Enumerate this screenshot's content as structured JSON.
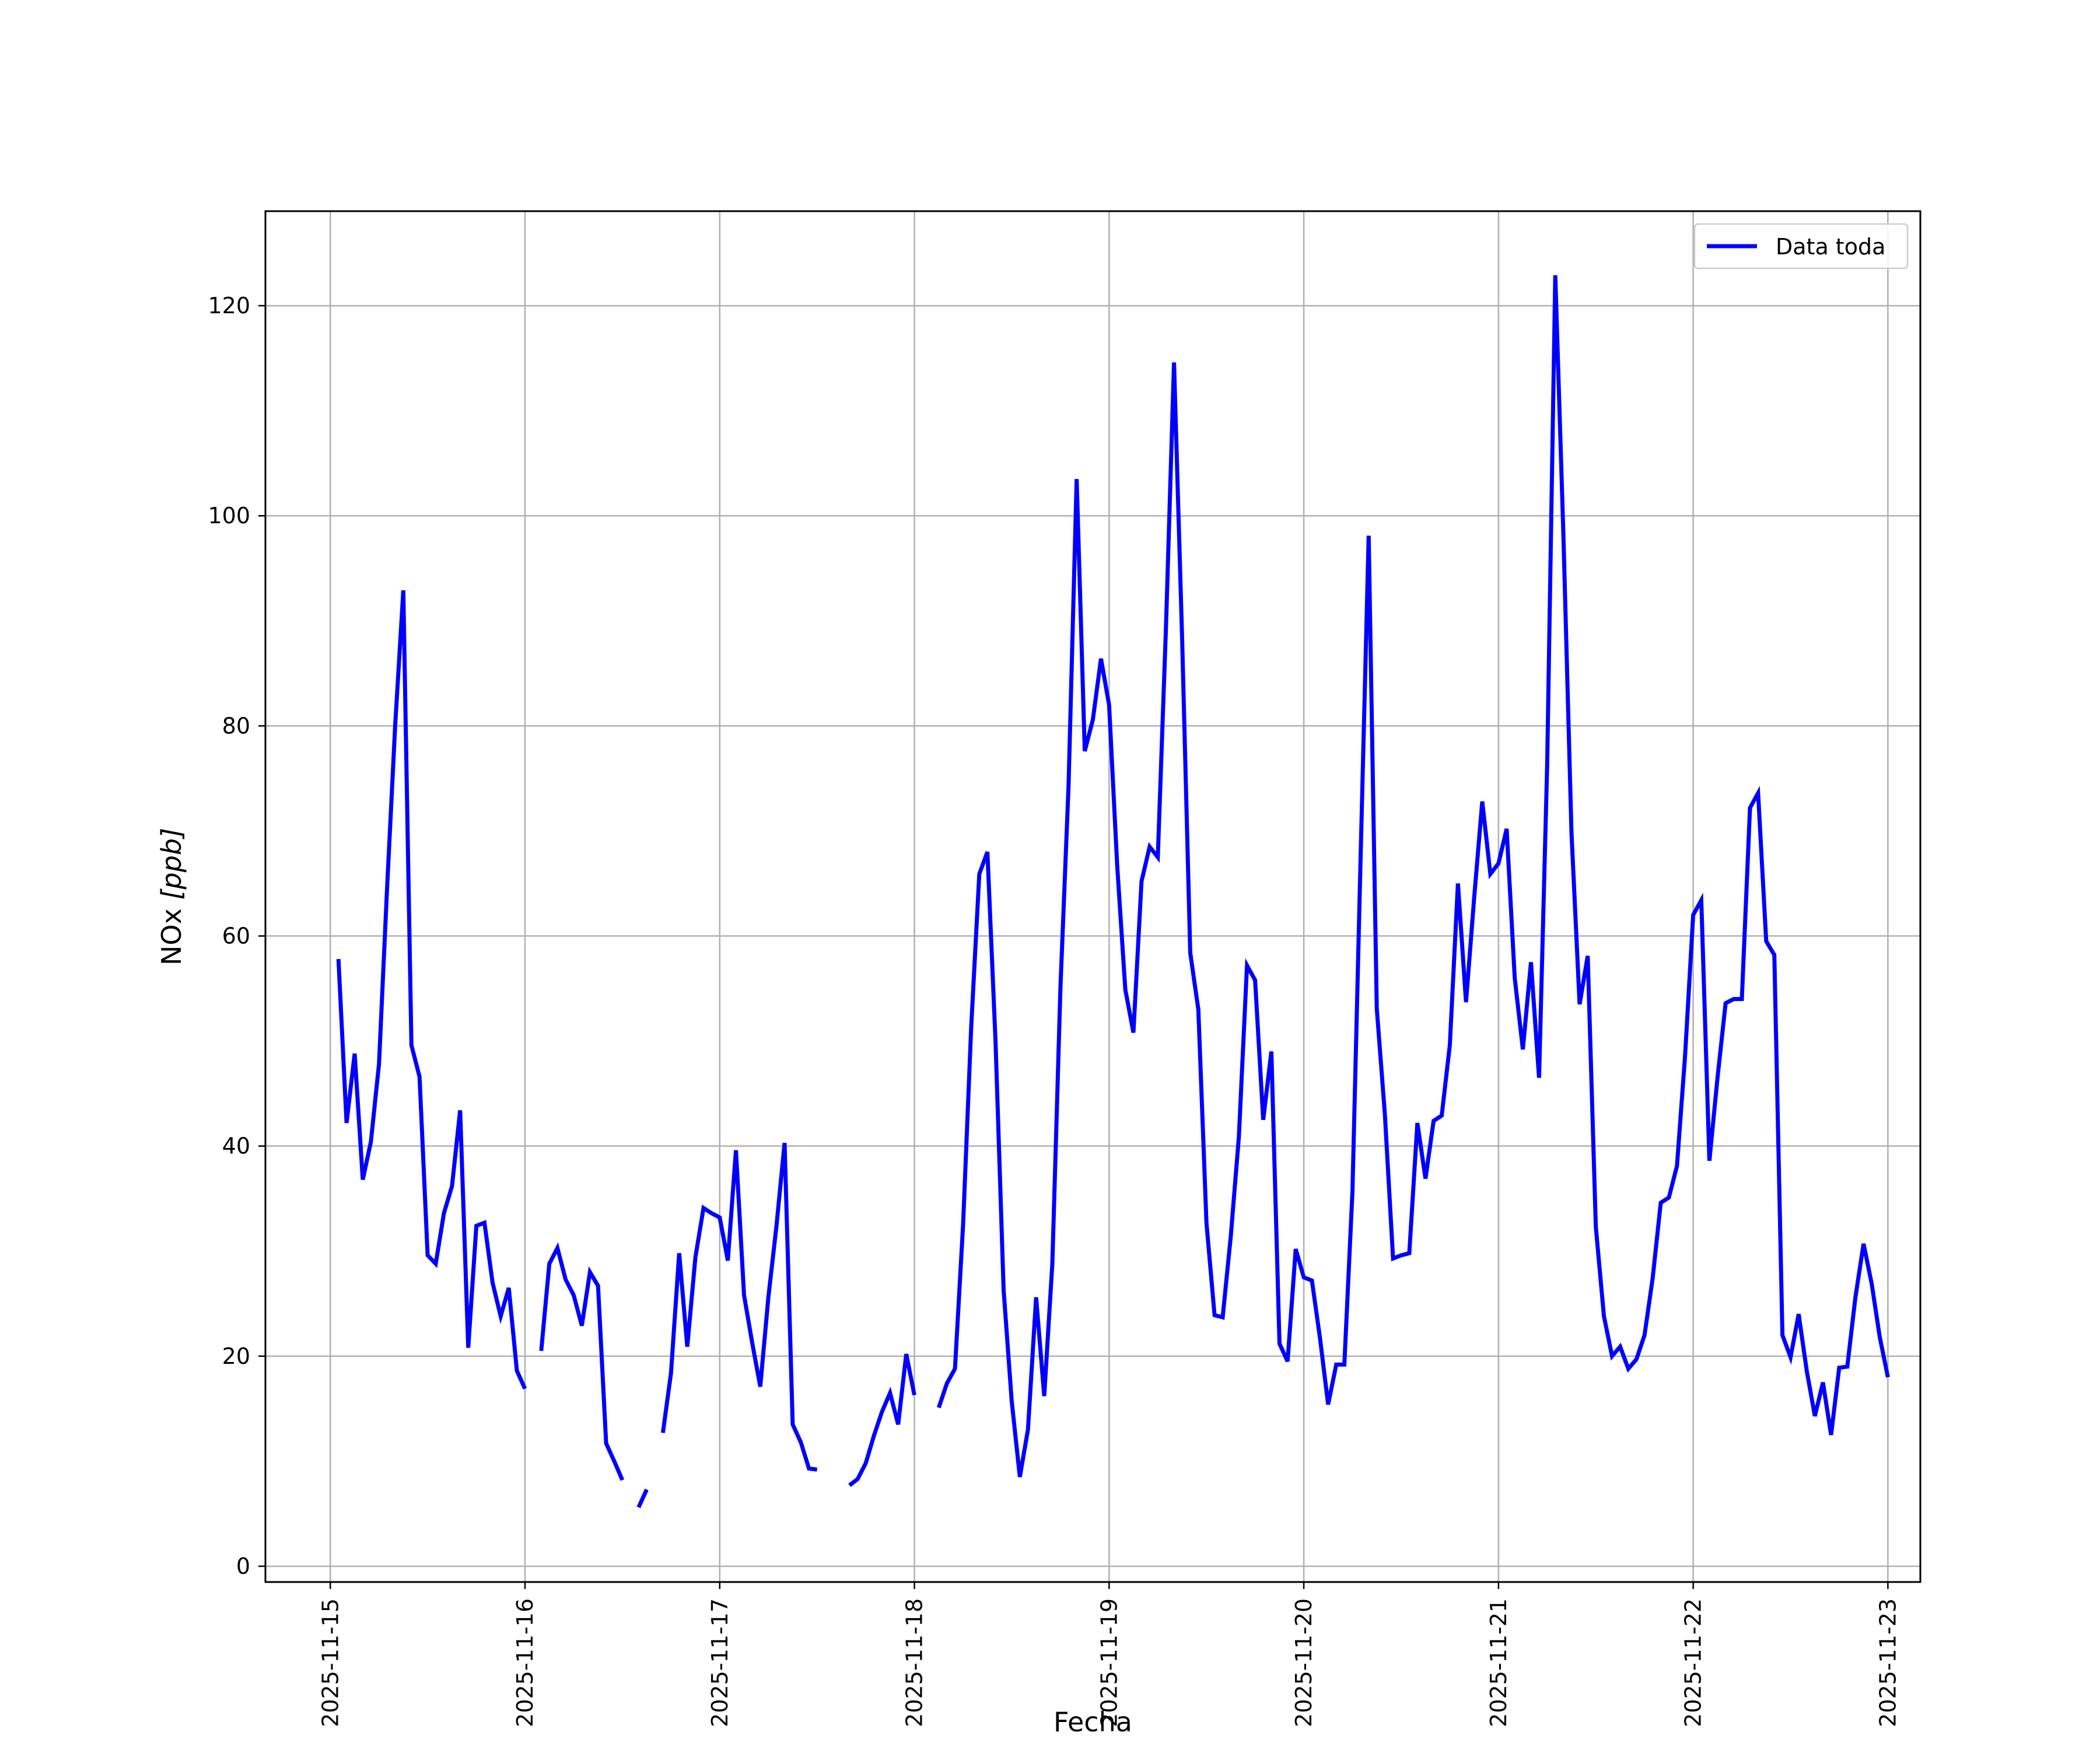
{
  "chart_data": {
    "type": "line",
    "title": "",
    "xlabel": "Fecha",
    "ylabel": "NOx [ppb]",
    "ylabel_parts": {
      "name": "NOx ",
      "unit": "[ppb]"
    },
    "grid": true,
    "legend_position": "top-right",
    "xlim": [
      "2025-11-14T16:00",
      "2025-11-23T04:00"
    ],
    "ylim": [
      -1.5,
      129
    ],
    "x_ticks": [
      "2025-11-15",
      "2025-11-16",
      "2025-11-17",
      "2025-11-18",
      "2025-11-19",
      "2025-11-20",
      "2025-11-21",
      "2025-11-22",
      "2025-11-23"
    ],
    "y_ticks": [
      0,
      20,
      40,
      60,
      80,
      100,
      120
    ],
    "series": [
      {
        "name": "Data toda",
        "color": "#0000ff",
        "points": [
          [
            "2025-11-15T01:00",
            57.8
          ],
          [
            "2025-11-15T02:00",
            42.2
          ],
          [
            "2025-11-15T03:00",
            48.8
          ],
          [
            "2025-11-15T04:00",
            36.8
          ],
          [
            "2025-11-15T05:00",
            40.4
          ],
          [
            "2025-11-15T06:00",
            47.8
          ],
          [
            "2025-11-15T07:00",
            64.6
          ],
          [
            "2025-11-15T08:00",
            80.1
          ],
          [
            "2025-11-15T09:00",
            92.9
          ],
          [
            "2025-11-15T10:00",
            49.6
          ],
          [
            "2025-11-15T11:00",
            46.6
          ],
          [
            "2025-11-15T12:00",
            29.6
          ],
          [
            "2025-11-15T13:00",
            28.8
          ],
          [
            "2025-11-15T14:00",
            33.6
          ],
          [
            "2025-11-15T15:00",
            36.2
          ],
          [
            "2025-11-15T16:00",
            43.4
          ],
          [
            "2025-11-15T17:00",
            20.8
          ],
          [
            "2025-11-15T18:00",
            32.4
          ],
          [
            "2025-11-15T19:00",
            32.7
          ],
          [
            "2025-11-15T20:00",
            27.0
          ],
          [
            "2025-11-15T21:00",
            23.8
          ],
          [
            "2025-11-15T22:00",
            26.5
          ],
          [
            "2025-11-15T23:00",
            18.6
          ],
          [
            "2025-11-16T00:00",
            16.9
          ],
          [
            "2025-11-16T01:00",
            null
          ],
          [
            "2025-11-16T02:00",
            20.5
          ],
          [
            "2025-11-16T03:00",
            28.8
          ],
          [
            "2025-11-16T04:00",
            30.3
          ],
          [
            "2025-11-16T05:00",
            27.3
          ],
          [
            "2025-11-16T06:00",
            25.8
          ],
          [
            "2025-11-16T07:00",
            22.9
          ],
          [
            "2025-11-16T08:00",
            28.0
          ],
          [
            "2025-11-16T09:00",
            26.7
          ],
          [
            "2025-11-16T10:00",
            11.7
          ],
          [
            "2025-11-16T11:00",
            10.0
          ],
          [
            "2025-11-16T12:00",
            8.2
          ],
          [
            "2025-11-16T13:00",
            null
          ],
          [
            "2025-11-16T14:00",
            5.6
          ],
          [
            "2025-11-16T15:00",
            7.3
          ],
          [
            "2025-11-16T16:00",
            null
          ],
          [
            "2025-11-16T17:00",
            12.7
          ],
          [
            "2025-11-16T18:00",
            18.4
          ],
          [
            "2025-11-16T19:00",
            29.8
          ],
          [
            "2025-11-16T20:00",
            20.9
          ],
          [
            "2025-11-16T21:00",
            29.4
          ],
          [
            "2025-11-16T22:00",
            34.1
          ],
          [
            "2025-11-16T23:00",
            33.6
          ],
          [
            "2025-11-17T00:00",
            33.2
          ],
          [
            "2025-11-17T01:00",
            29.1
          ],
          [
            "2025-11-17T02:00",
            39.6
          ],
          [
            "2025-11-17T03:00",
            25.8
          ],
          [
            "2025-11-17T04:00",
            21.3
          ],
          [
            "2025-11-17T05:00",
            17.1
          ],
          [
            "2025-11-17T06:00",
            25.6
          ],
          [
            "2025-11-17T07:00",
            32.4
          ],
          [
            "2025-11-17T08:00",
            40.3
          ],
          [
            "2025-11-17T09:00",
            13.5
          ],
          [
            "2025-11-17T10:00",
            11.8
          ],
          [
            "2025-11-17T11:00",
            9.3
          ],
          [
            "2025-11-17T12:00",
            9.2
          ],
          [
            "2025-11-17T13:00",
            null
          ],
          [
            "2025-11-17T16:00",
            7.7
          ],
          [
            "2025-11-17T17:00",
            8.3
          ],
          [
            "2025-11-17T18:00",
            9.8
          ],
          [
            "2025-11-17T19:00",
            12.4
          ],
          [
            "2025-11-17T20:00",
            14.7
          ],
          [
            "2025-11-17T21:00",
            16.5
          ],
          [
            "2025-11-17T22:00",
            13.5
          ],
          [
            "2025-11-17T23:00",
            20.2
          ],
          [
            "2025-11-18T00:00",
            16.3
          ],
          [
            "2025-11-18T01:00",
            null
          ],
          [
            "2025-11-18T03:00",
            15.1
          ],
          [
            "2025-11-18T04:00",
            17.4
          ],
          [
            "2025-11-18T05:00",
            18.8
          ],
          [
            "2025-11-18T06:00",
            32.5
          ],
          [
            "2025-11-18T07:00",
            51.3
          ],
          [
            "2025-11-18T08:00",
            65.9
          ],
          [
            "2025-11-18T09:00",
            68.0
          ],
          [
            "2025-11-18T10:00",
            50.0
          ],
          [
            "2025-11-18T11:00",
            26.3
          ],
          [
            "2025-11-18T12:00",
            15.7
          ],
          [
            "2025-11-18T13:00",
            8.5
          ],
          [
            "2025-11-18T14:00",
            13.0
          ],
          [
            "2025-11-18T15:00",
            25.6
          ],
          [
            "2025-11-18T16:00",
            16.2
          ],
          [
            "2025-11-18T17:00",
            28.8
          ],
          [
            "2025-11-18T18:00",
            55.1
          ],
          [
            "2025-11-18T19:00",
            74.3
          ],
          [
            "2025-11-18T20:00",
            103.5
          ],
          [
            "2025-11-18T21:00",
            77.6
          ],
          [
            "2025-11-18T22:00",
            80.6
          ],
          [
            "2025-11-18T23:00",
            86.4
          ],
          [
            "2025-11-19T00:00",
            82.0
          ],
          [
            "2025-11-19T01:00",
            66.7
          ],
          [
            "2025-11-19T02:00",
            54.9
          ],
          [
            "2025-11-19T03:00",
            50.8
          ],
          [
            "2025-11-19T04:00",
            65.2
          ],
          [
            "2025-11-19T05:00",
            68.5
          ],
          [
            "2025-11-19T06:00",
            67.5
          ],
          [
            "2025-11-19T07:00",
            89.2
          ],
          [
            "2025-11-19T08:00",
            114.6
          ],
          [
            "2025-11-19T09:00",
            88.3
          ],
          [
            "2025-11-19T10:00",
            58.4
          ],
          [
            "2025-11-19T11:00",
            53.0
          ],
          [
            "2025-11-19T12:00",
            32.7
          ],
          [
            "2025-11-19T13:00",
            23.9
          ],
          [
            "2025-11-19T14:00",
            23.7
          ],
          [
            "2025-11-19T15:00",
            31.4
          ],
          [
            "2025-11-19T16:00",
            40.9
          ],
          [
            "2025-11-19T17:00",
            57.2
          ],
          [
            "2025-11-19T18:00",
            55.8
          ],
          [
            "2025-11-19T19:00",
            42.5
          ],
          [
            "2025-11-19T20:00",
            49.0
          ],
          [
            "2025-11-19T21:00",
            21.2
          ],
          [
            "2025-11-19T22:00",
            19.5
          ],
          [
            "2025-11-19T23:00",
            30.2
          ],
          [
            "2025-11-20T00:00",
            27.5
          ],
          [
            "2025-11-20T01:00",
            27.2
          ],
          [
            "2025-11-20T02:00",
            21.7
          ],
          [
            "2025-11-20T03:00",
            15.4
          ],
          [
            "2025-11-20T04:00",
            19.2
          ],
          [
            "2025-11-20T05:00",
            19.2
          ],
          [
            "2025-11-20T06:00",
            35.7
          ],
          [
            "2025-11-20T07:00",
            67.3
          ],
          [
            "2025-11-20T08:00",
            98.1
          ],
          [
            "2025-11-20T09:00",
            53.1
          ],
          [
            "2025-11-20T10:00",
            43.0
          ],
          [
            "2025-11-20T11:00",
            29.3
          ],
          [
            "2025-11-20T12:00",
            29.6
          ],
          [
            "2025-11-20T13:00",
            29.8
          ],
          [
            "2025-11-20T14:00",
            42.2
          ],
          [
            "2025-11-20T15:00",
            36.9
          ],
          [
            "2025-11-20T16:00",
            42.4
          ],
          [
            "2025-11-20T17:00",
            42.9
          ],
          [
            "2025-11-20T18:00",
            49.6
          ],
          [
            "2025-11-20T19:00",
            65.0
          ],
          [
            "2025-11-20T20:00",
            53.7
          ],
          [
            "2025-11-20T21:00",
            63.6
          ],
          [
            "2025-11-20T22:00",
            72.8
          ],
          [
            "2025-11-20T23:00",
            65.9
          ],
          [
            "2025-11-21T00:00",
            66.9
          ],
          [
            "2025-11-21T01:00",
            70.2
          ],
          [
            "2025-11-21T02:00",
            56.0
          ],
          [
            "2025-11-21T03:00",
            49.2
          ],
          [
            "2025-11-21T04:00",
            57.5
          ],
          [
            "2025-11-21T05:00",
            46.5
          ],
          [
            "2025-11-21T06:00",
            76.3
          ],
          [
            "2025-11-21T07:00",
            122.9
          ],
          [
            "2025-11-21T08:00",
            98.2
          ],
          [
            "2025-11-21T09:00",
            69.8
          ],
          [
            "2025-11-21T10:00",
            53.5
          ],
          [
            "2025-11-21T11:00",
            58.1
          ],
          [
            "2025-11-21T12:00",
            32.3
          ],
          [
            "2025-11-21T13:00",
            23.8
          ],
          [
            "2025-11-21T14:00",
            20.0
          ],
          [
            "2025-11-21T15:00",
            20.9
          ],
          [
            "2025-11-21T16:00",
            18.8
          ],
          [
            "2025-11-21T17:00",
            19.7
          ],
          [
            "2025-11-21T18:00",
            22.0
          ],
          [
            "2025-11-21T19:00",
            27.4
          ],
          [
            "2025-11-21T20:00",
            34.6
          ],
          [
            "2025-11-21T21:00",
            35.1
          ],
          [
            "2025-11-21T22:00",
            38.1
          ],
          [
            "2025-11-21T23:00",
            48.6
          ],
          [
            "2025-11-22T00:00",
            62.0
          ],
          [
            "2025-11-22T01:00",
            63.4
          ],
          [
            "2025-11-22T02:00",
            38.6
          ],
          [
            "2025-11-22T03:00",
            46.5
          ],
          [
            "2025-11-22T04:00",
            53.6
          ],
          [
            "2025-11-22T05:00",
            54.0
          ],
          [
            "2025-11-22T06:00",
            54.0
          ],
          [
            "2025-11-22T07:00",
            72.2
          ],
          [
            "2025-11-22T08:00",
            73.6
          ],
          [
            "2025-11-22T09:00",
            59.5
          ],
          [
            "2025-11-22T10:00",
            58.2
          ],
          [
            "2025-11-22T11:00",
            22.0
          ],
          [
            "2025-11-22T12:00",
            19.9
          ],
          [
            "2025-11-22T13:00",
            24.0
          ],
          [
            "2025-11-22T14:00",
            18.6
          ],
          [
            "2025-11-22T15:00",
            14.3
          ],
          [
            "2025-11-22T16:00",
            17.5
          ],
          [
            "2025-11-22T17:00",
            12.5
          ],
          [
            "2025-11-22T18:00",
            18.9
          ],
          [
            "2025-11-22T19:00",
            19.0
          ],
          [
            "2025-11-22T20:00",
            25.6
          ],
          [
            "2025-11-22T21:00",
            30.7
          ],
          [
            "2025-11-22T22:00",
            26.9
          ],
          [
            "2025-11-22T23:00",
            21.8
          ],
          [
            "2025-11-23T00:00",
            18.0
          ]
        ]
      }
    ]
  }
}
